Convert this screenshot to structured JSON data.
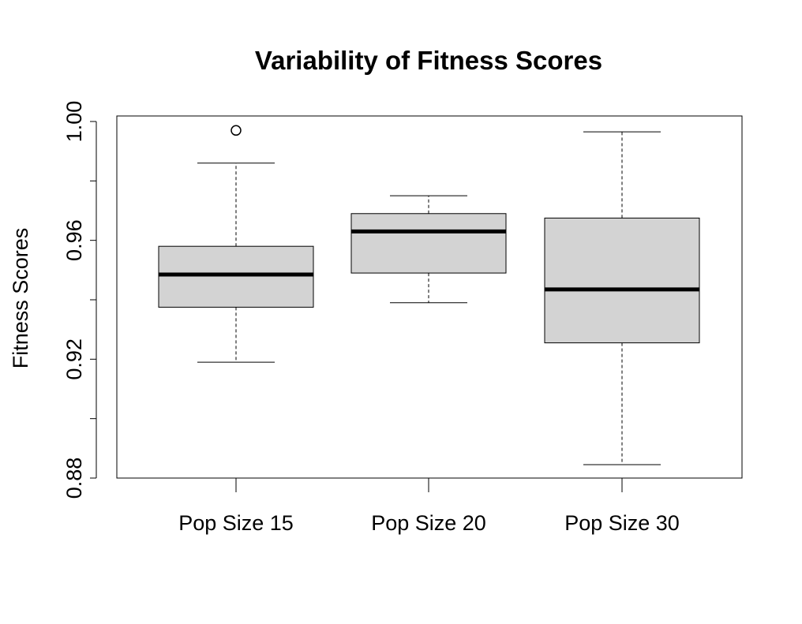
{
  "chart_data": {
    "type": "boxplot",
    "title": "Variability of Fitness Scores",
    "xlabel": "",
    "ylabel": "Fitness Scores",
    "ylim": [
      0.88,
      1.0
    ],
    "yticks": [
      0.88,
      0.9,
      0.92,
      0.94,
      0.96,
      0.98,
      1.0
    ],
    "ytick_labels": [
      "0.88",
      "",
      "0.92",
      "",
      "0.96",
      "",
      "1.00"
    ],
    "categories": [
      "Pop Size 15",
      "Pop Size 20",
      "Pop Size 30"
    ],
    "boxes": [
      {
        "name": "Pop Size 15",
        "whisker_low": 0.919,
        "q1": 0.9375,
        "median": 0.9485,
        "q3": 0.958,
        "whisker_high": 0.986,
        "outliers": [
          0.997
        ]
      },
      {
        "name": "Pop Size 20",
        "whisker_low": 0.939,
        "q1": 0.949,
        "median": 0.963,
        "q3": 0.969,
        "whisker_high": 0.975,
        "outliers": []
      },
      {
        "name": "Pop Size 30",
        "whisker_low": 0.8845,
        "q1": 0.9255,
        "median": 0.9435,
        "q3": 0.9675,
        "whisker_high": 0.9965,
        "outliers": []
      }
    ],
    "box_fill": "#d3d3d3",
    "grid": false,
    "legend": "none"
  }
}
